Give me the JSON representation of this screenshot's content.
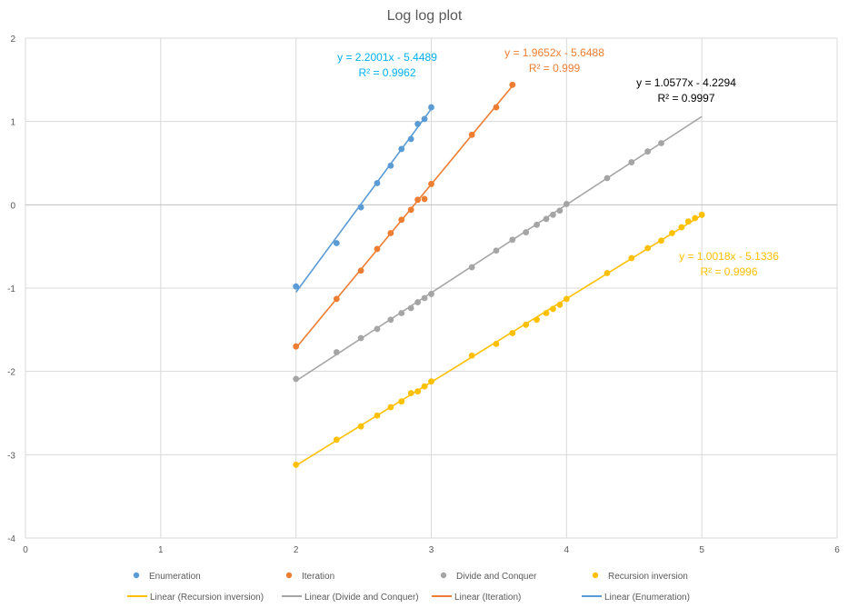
{
  "chart_data": {
    "type": "scatter",
    "title": "Log log plot",
    "xlabel": "",
    "ylabel": "",
    "xlim": [
      0,
      6
    ],
    "ylim": [
      -4,
      2
    ],
    "grid": true,
    "x_ticks": [
      "0",
      "1",
      "2",
      "3",
      "4",
      "5",
      "6"
    ],
    "y_ticks": [
      "2",
      "1",
      "0",
      "-1",
      "-2",
      "-3",
      "-4"
    ],
    "series": [
      {
        "name": "Enumeration",
        "color": "#5B9BD5",
        "points": [
          [
            2.0,
            -0.98
          ],
          [
            2.3,
            -0.46
          ],
          [
            2.48,
            -0.03
          ],
          [
            2.6,
            0.26
          ],
          [
            2.7,
            0.47
          ],
          [
            2.78,
            0.67
          ],
          [
            2.85,
            0.79
          ],
          [
            2.9,
            0.97
          ],
          [
            2.95,
            1.03
          ],
          [
            3.0,
            1.17
          ]
        ],
        "trendline": {
          "slope": 2.2001,
          "intercept": -5.4489,
          "x_range": [
            2.0,
            3.0
          ],
          "equation": "y = 2.2001x - 5.4489",
          "r2": "R² = 0.9962",
          "label_color": "#00B0F0"
        }
      },
      {
        "name": "Iteration",
        "color": "#ED7D31",
        "points": [
          [
            2.0,
            -1.7
          ],
          [
            2.3,
            -1.13
          ],
          [
            2.48,
            -0.79
          ],
          [
            2.6,
            -0.53
          ],
          [
            2.7,
            -0.34
          ],
          [
            2.78,
            -0.18
          ],
          [
            2.85,
            -0.06
          ],
          [
            2.9,
            0.06
          ],
          [
            2.95,
            0.07
          ],
          [
            3.0,
            0.25
          ],
          [
            3.3,
            0.84
          ],
          [
            3.48,
            1.17
          ],
          [
            3.6,
            1.44
          ]
        ],
        "trendline": {
          "slope": 1.9652,
          "intercept": -5.6488,
          "x_range": [
            2.0,
            3.6
          ],
          "equation": "y = 1.9652x - 5.6488",
          "r2": "R² = 0.999",
          "label_color": "#ED7D31"
        }
      },
      {
        "name": "Divide and Conquer",
        "color": "#A5A5A5",
        "points": [
          [
            2.0,
            -2.09
          ],
          [
            2.3,
            -1.77
          ],
          [
            2.48,
            -1.6
          ],
          [
            2.6,
            -1.49
          ],
          [
            2.7,
            -1.38
          ],
          [
            2.78,
            -1.3
          ],
          [
            2.85,
            -1.24
          ],
          [
            2.9,
            -1.17
          ],
          [
            2.95,
            -1.12
          ],
          [
            3.0,
            -1.07
          ],
          [
            3.3,
            -0.75
          ],
          [
            3.48,
            -0.55
          ],
          [
            3.6,
            -0.42
          ],
          [
            3.7,
            -0.33
          ],
          [
            3.78,
            -0.24
          ],
          [
            3.85,
            -0.17
          ],
          [
            3.9,
            -0.12
          ],
          [
            3.95,
            -0.07
          ],
          [
            4.0,
            0.01
          ],
          [
            4.3,
            0.32
          ],
          [
            4.48,
            0.51
          ],
          [
            4.6,
            0.64
          ],
          [
            4.7,
            0.74
          ]
        ],
        "trendline": {
          "slope": 1.0577,
          "intercept": -4.2294,
          "x_range": [
            2.0,
            5.0
          ],
          "equation": "y = 1.0577x - 4.2294",
          "r2": "R² = 0.9997",
          "label_color": "#000000"
        }
      },
      {
        "name": "Recursion inversion",
        "color": "#FFC000",
        "points": [
          [
            2.0,
            -3.12
          ],
          [
            2.3,
            -2.82
          ],
          [
            2.48,
            -2.66
          ],
          [
            2.6,
            -2.53
          ],
          [
            2.7,
            -2.43
          ],
          [
            2.78,
            -2.36
          ],
          [
            2.85,
            -2.26
          ],
          [
            2.9,
            -2.24
          ],
          [
            2.95,
            -2.18
          ],
          [
            3.0,
            -2.12
          ],
          [
            3.3,
            -1.81
          ],
          [
            3.48,
            -1.67
          ],
          [
            3.6,
            -1.54
          ],
          [
            3.7,
            -1.44
          ],
          [
            3.78,
            -1.38
          ],
          [
            3.85,
            -1.3
          ],
          [
            3.9,
            -1.25
          ],
          [
            3.95,
            -1.2
          ],
          [
            4.0,
            -1.13
          ],
          [
            4.3,
            -0.82
          ],
          [
            4.48,
            -0.64
          ],
          [
            4.6,
            -0.52
          ],
          [
            4.7,
            -0.43
          ],
          [
            4.78,
            -0.34
          ],
          [
            4.85,
            -0.27
          ],
          [
            4.9,
            -0.2
          ],
          [
            4.95,
            -0.16
          ],
          [
            5.0,
            -0.12
          ]
        ],
        "trendline": {
          "slope": 1.0018,
          "intercept": -5.1336,
          "x_range": [
            2.0,
            5.0
          ],
          "equation": "y = 1.0018x - 5.1336",
          "r2": "R² = 0.9996",
          "label_color": "#FFC000"
        }
      }
    ],
    "legend": {
      "position": "bottom",
      "marker_entries": [
        "Enumeration",
        "Iteration",
        "Divide and Conquer",
        "Recursion inversion"
      ],
      "line_entries": [
        {
          "label": "Linear (Recursion inversion)",
          "color": "#FFC000"
        },
        {
          "label": "Linear (Divide and Conquer)",
          "color": "#A5A5A5"
        },
        {
          "label": "Linear (Iteration)",
          "color": "#ED7D31"
        },
        {
          "label": "Linear (Enumeration)",
          "color": "#5B9BD5"
        }
      ]
    }
  }
}
